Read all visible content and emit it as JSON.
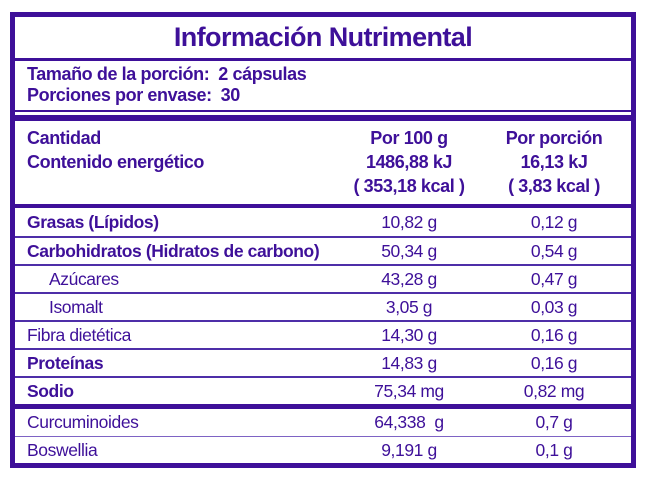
{
  "colors": {
    "purple": "#3E1099",
    "row_line": "#4E2EA8",
    "extra_line": "#7E63C4"
  },
  "title": "Información Nutrimental",
  "serving": {
    "size_label": "Tamaño de la porción:",
    "size_value": "2 cápsulas",
    "count_label": "Porciones por envase:",
    "count_value": "30"
  },
  "header": {
    "amount": "Cantidad",
    "energy": "Contenido energético",
    "per100": {
      "l1": "Por 100 g",
      "l2": "1486,88 kJ",
      "l3": "( 353,18 kcal )"
    },
    "portion": {
      "l1": "Por porción",
      "l2": "16,13 kJ",
      "l3": "( 3,83 kcal )"
    }
  },
  "rows": [
    {
      "name": "Grasas (Lípidos)",
      "per100": "10,82 g",
      "portion": "0,12 g"
    },
    {
      "name": "Carbohidratos (Hidratos de carbono)",
      "per100": "50,34 g",
      "portion": "0,54 g"
    },
    {
      "name": "Azúcares",
      "per100": "43,28 g",
      "portion": "0,47 g"
    },
    {
      "name": "Isomalt",
      "per100": "3,05 g",
      "portion": "0,03 g"
    },
    {
      "name": "Fibra dietética",
      "per100": "14,30 g",
      "portion": "0,16 g"
    },
    {
      "name": "Proteínas",
      "per100": "14,83 g",
      "portion": "0,16 g"
    },
    {
      "name": "Sodio",
      "per100": "75,34 mg",
      "portion": "0,82 mg"
    }
  ],
  "extra_rows": [
    {
      "name": "Curcuminoides",
      "per100": "64,338  g",
      "portion": "0,7 g"
    },
    {
      "name": "Boswellia",
      "per100": "9,191 g",
      "portion": "0,1 g"
    }
  ]
}
